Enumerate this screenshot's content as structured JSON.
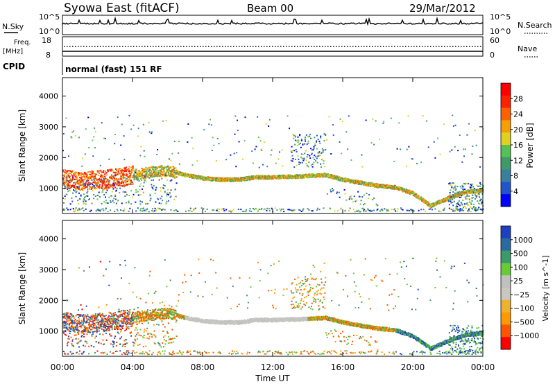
{
  "header": {
    "station": "Syowa East (fitACF)",
    "beam": "Beam 00",
    "date": "29/Mar/2012"
  },
  "noise_panel": {
    "left_label": "N.Sky",
    "right_label": "N.Search",
    "left_ticks": [
      "10^5",
      "10^0"
    ],
    "right_ticks": [
      "10^5",
      "10^0"
    ]
  },
  "freq_panel": {
    "left_label_line1": "Freq.",
    "left_label_line2": "[MHz]",
    "right_label": "Nave",
    "left_ticks": [
      "18",
      "8"
    ],
    "right_ticks": [
      "60",
      "0"
    ]
  },
  "cpid_panel": {
    "label": "CPID",
    "text": "normal (fast) 151 RF"
  },
  "colors": {
    "power_scale": [
      "#0000ff",
      "#2255cc",
      "#3b7fa0",
      "#3f9a6a",
      "#55c055",
      "#e0d020",
      "#f5a000",
      "#ff6000",
      "#ff2000",
      "#ff0000"
    ],
    "velocity_scale": [
      "#ff0000",
      "#ff5500",
      "#ff9900",
      "#f0b030",
      "#c8c8c0",
      "#c0c0c0",
      "#66cc33",
      "#3b9a6a",
      "#2b6a9f",
      "#1e40c0"
    ]
  },
  "chart_data": [
    {
      "type": "heatmap",
      "name": "power",
      "ylabel": "Slant Range [km]",
      "y_ticks": [
        1000,
        2000,
        3000,
        4000
      ],
      "ylim": [
        180,
        4600
      ],
      "x_ticks": [
        "00:00",
        "04:00",
        "08:00",
        "12:00",
        "16:00",
        "20:00",
        "00:00"
      ],
      "xlim_hours": [
        0,
        24
      ],
      "colorbar": {
        "label": "Power [dB]",
        "ticks": [
          "4",
          "8",
          "12",
          "16",
          "20",
          "24",
          "28"
        ],
        "range": [
          0,
          30
        ]
      },
      "main_band_km": [
        [
          0,
          1350
        ],
        [
          1,
          1250
        ],
        [
          2,
          1300
        ],
        [
          3,
          1350
        ],
        [
          4,
          1450
        ],
        [
          5,
          1550
        ],
        [
          6,
          1600
        ],
        [
          7,
          1450
        ],
        [
          8,
          1350
        ],
        [
          9,
          1300
        ],
        [
          10,
          1300
        ],
        [
          11,
          1380
        ],
        [
          12,
          1380
        ],
        [
          13,
          1400
        ],
        [
          14,
          1420
        ],
        [
          15,
          1450
        ],
        [
          16,
          1300
        ],
        [
          17,
          1200
        ],
        [
          18,
          1100
        ],
        [
          19,
          1050
        ],
        [
          20,
          850
        ],
        [
          21,
          450
        ],
        [
          22,
          700
        ],
        [
          23,
          900
        ],
        [
          24,
          950
        ]
      ]
    },
    {
      "type": "heatmap",
      "name": "velocity",
      "ylabel": "Slant Range [km]",
      "y_ticks": [
        1000,
        2000,
        3000,
        4000
      ],
      "ylim": [
        180,
        4600
      ],
      "x_ticks": [
        "00:00",
        "04:00",
        "08:00",
        "12:00",
        "16:00",
        "20:00",
        "00:00"
      ],
      "xlim_hours": [
        0,
        24
      ],
      "xlabel": "Time UT",
      "colorbar": {
        "label": "Velocity [m s^-1]",
        "ticks": [
          "1000",
          "500",
          "100",
          "25",
          "−25",
          "−100",
          "−500",
          "−1000"
        ]
      }
    }
  ]
}
